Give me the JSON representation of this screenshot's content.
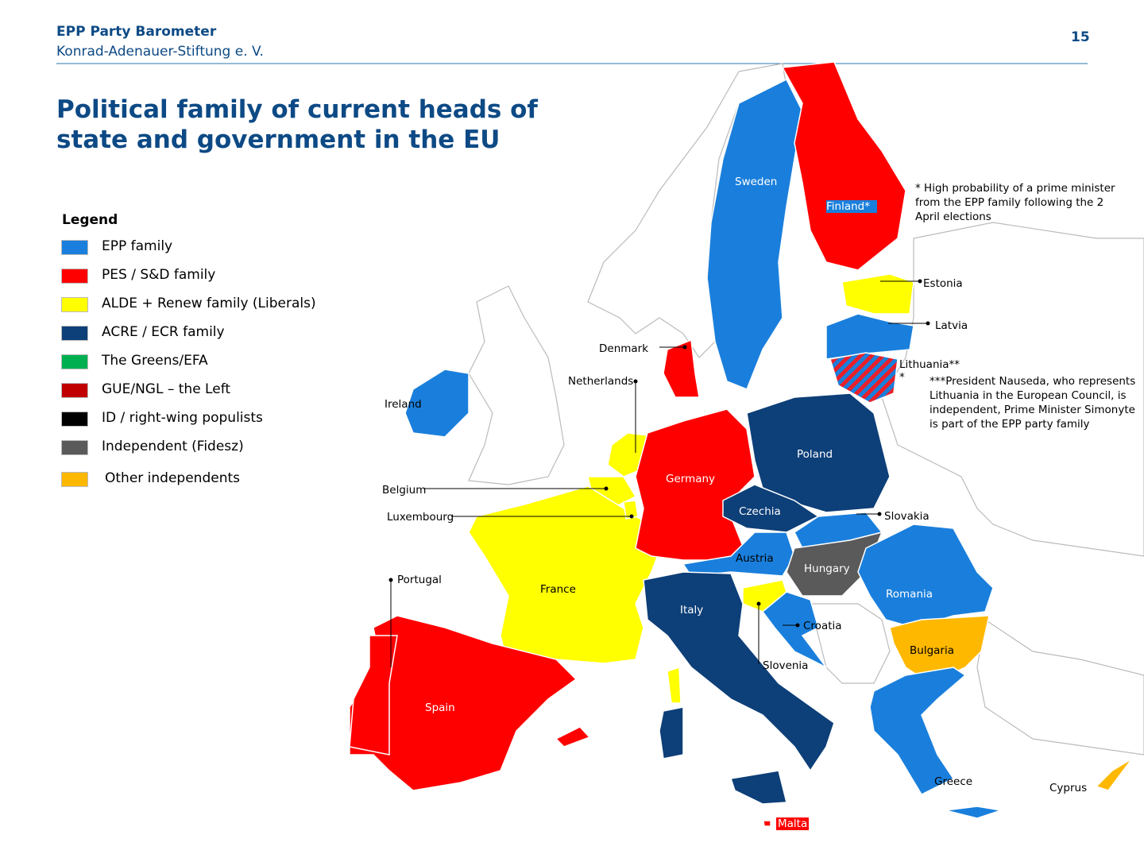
{
  "header": {
    "title": "EPP Party Barometer",
    "subtitle": "Konrad-Adenauer-Stiftung e. V.",
    "page_number": "15"
  },
  "title": "Political family of current heads of state and government in the EU",
  "legend": {
    "title": "Legend",
    "items": [
      {
        "label": "EPP family",
        "color": "#1a7fdc"
      },
      {
        "label": "PES / S&D family",
        "color": "#ff0000"
      },
      {
        "label": "ALDE + Renew family (Liberals)",
        "color": "#ffff00"
      },
      {
        "label": "ACRE / ECR family",
        "color": "#0d3f78"
      },
      {
        "label": "The Greens/EFA",
        "color": "#00b050"
      },
      {
        "label": "GUE/NGL – the Left",
        "color": "#c00000"
      },
      {
        "label": "ID / right-wing populists",
        "color": "#000000"
      },
      {
        "label": "Independent (Fidesz)",
        "color": "#5a5a5a"
      },
      {
        "label": "Other  independents",
        "color": "#ffb800"
      }
    ]
  },
  "countries": [
    {
      "label": "Sweden",
      "color": "#1a7fdc"
    },
    {
      "label": "Finland*",
      "color": "#ff0000"
    },
    {
      "label": "Estonia",
      "color": "#ffff00"
    },
    {
      "label": "Latvia",
      "color": "#1a7fdc"
    },
    {
      "label": "Lithuania***"
    },
    {
      "label": "Denmark",
      "color": "#ff0000"
    },
    {
      "label": "Netherlands",
      "color": "#ffff00"
    },
    {
      "label": "Ireland",
      "color": "#1a7fdc"
    },
    {
      "label": "Belgium",
      "color": "#ffff00"
    },
    {
      "label": "Luxembourg",
      "color": "#ffff00"
    },
    {
      "label": "Portugal",
      "color": "#ff0000"
    },
    {
      "label": "Spain",
      "color": "#ff0000"
    },
    {
      "label": "France",
      "color": "#ffff00"
    },
    {
      "label": "Germany",
      "color": "#ff0000"
    },
    {
      "label": "Poland",
      "color": "#0d3f78"
    },
    {
      "label": "Czechia",
      "color": "#0d3f78"
    },
    {
      "label": "Slovakia",
      "color": "#1a7fdc"
    },
    {
      "label": "Austria",
      "color": "#1a7fdc"
    },
    {
      "label": "Hungary",
      "color": "#5a5a5a"
    },
    {
      "label": "Romania",
      "color": "#1a7fdc"
    },
    {
      "label": "Bulgaria",
      "color": "#ffb800"
    },
    {
      "label": "Croatia",
      "color": "#1a7fdc"
    },
    {
      "label": "Slovenia",
      "color": "#ffff00"
    },
    {
      "label": "Italy",
      "color": "#0d3f78"
    },
    {
      "label": "Greece",
      "color": "#1a7fdc"
    },
    {
      "label": "Cyprus",
      "color": "#ffb800"
    },
    {
      "label": "Malta",
      "color": "#ff0000"
    }
  ],
  "notes": [
    "* High probability of a prime minister from the EPP family following the 2 April elections",
    "***President Nauseda, who represents Lithuania in the European Council, is independent, Prime Minister Simonyte is part of the EPP party family"
  ]
}
